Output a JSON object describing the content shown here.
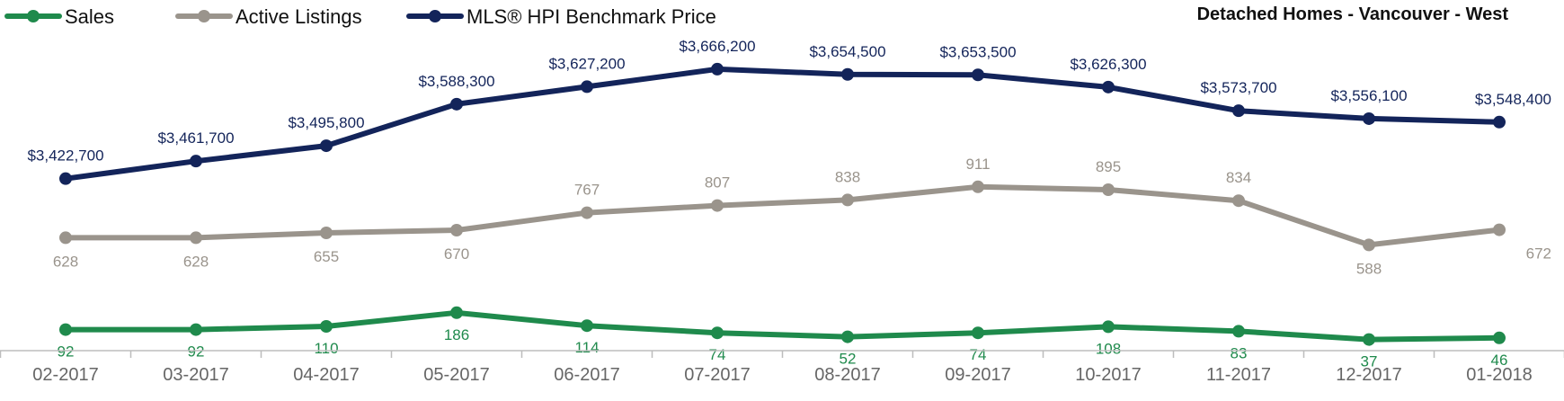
{
  "chart_data": {
    "type": "line",
    "title": "Detached Homes - Vancouver - West",
    "legend_placement": "top-left",
    "grid": false,
    "categories": [
      "02-2017",
      "03-2017",
      "04-2017",
      "05-2017",
      "06-2017",
      "07-2017",
      "08-2017",
      "09-2017",
      "10-2017",
      "11-2017",
      "12-2017",
      "01-2018"
    ],
    "series": [
      {
        "name": "Sales",
        "color": "#1f8a4c",
        "values": [
          92,
          92,
          110,
          186,
          114,
          74,
          52,
          74,
          108,
          83,
          37,
          46
        ],
        "labels": [
          "92",
          "92",
          "110",
          "186",
          "114",
          "74",
          "52",
          "74",
          "108",
          "83",
          "37",
          "46"
        ]
      },
      {
        "name": "Active Listings",
        "color": "#9a948c",
        "values": [
          628,
          628,
          655,
          670,
          767,
          807,
          838,
          911,
          895,
          834,
          588,
          672
        ],
        "labels": [
          "628",
          "628",
          "655",
          "670",
          "767",
          "807",
          "838",
          "911",
          "895",
          "834",
          "588",
          "672"
        ]
      },
      {
        "name": "MLS® HPI Benchmark Price",
        "color": "#13245a",
        "values": [
          3422700,
          3461700,
          3495800,
          3588300,
          3627200,
          3666200,
          3654500,
          3653500,
          3626300,
          3573700,
          3556100,
          3548400
        ],
        "labels": [
          "$3,422,700",
          "$3,461,700",
          "$3,495,800",
          "$3,588,300",
          "$3,627,200",
          "$3,666,200",
          "$3,654,500",
          "$3,653,500",
          "$3,626,300",
          "$3,573,700",
          "$3,556,100",
          "$3,548,400"
        ]
      }
    ]
  }
}
